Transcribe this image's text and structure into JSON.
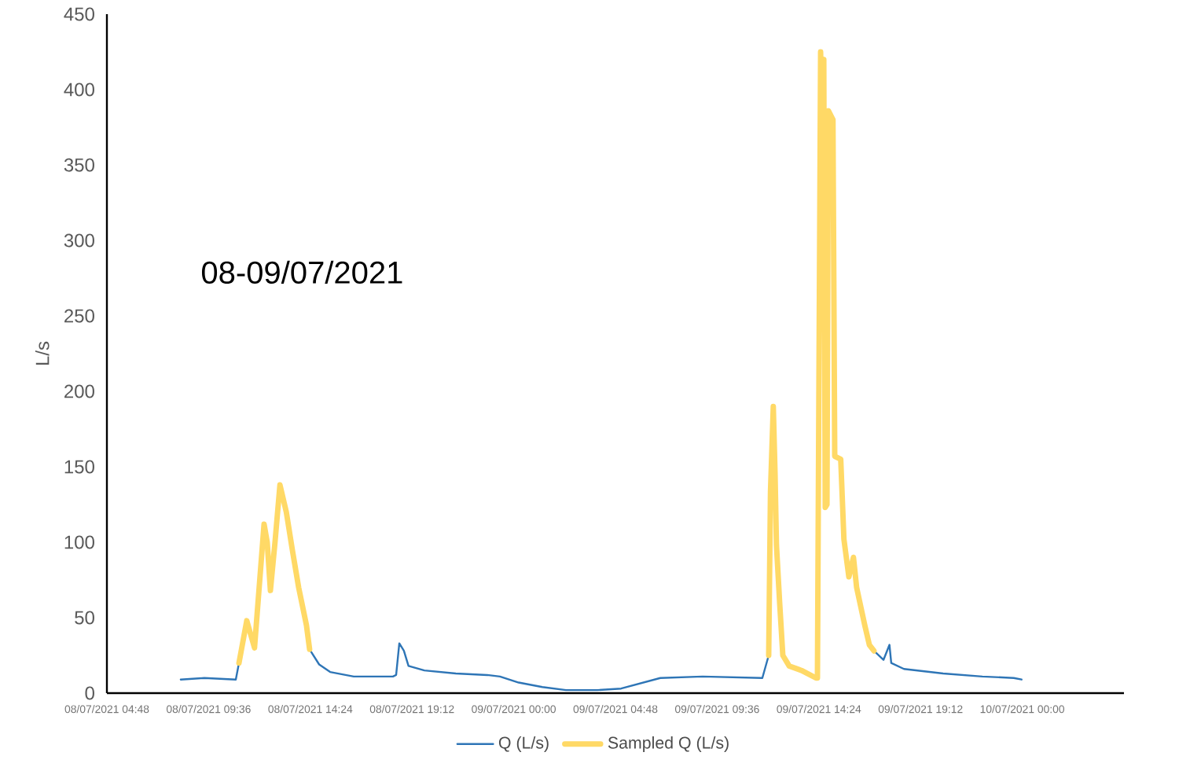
{
  "chart_data": {
    "type": "line",
    "ylabel": "L/s",
    "annotations": [
      "08-09/07/2021"
    ],
    "xlim": [
      "2021-07-08T04:48",
      "2021-07-10T04:48"
    ],
    "xticks": [
      {
        "value": "2021-07-08T04:48",
        "label": "08/07/2021 04:48"
      },
      {
        "value": "2021-07-08T09:36",
        "label": "08/07/2021 09:36"
      },
      {
        "value": "2021-07-08T14:24",
        "label": "08/07/2021 14:24"
      },
      {
        "value": "2021-07-08T19:12",
        "label": "08/07/2021 19:12"
      },
      {
        "value": "2021-07-09T00:00",
        "label": "09/07/2021 00:00"
      },
      {
        "value": "2021-07-09T04:48",
        "label": "09/07/2021 04:48"
      },
      {
        "value": "2021-07-09T09:36",
        "label": "09/07/2021 09:36"
      },
      {
        "value": "2021-07-09T14:24",
        "label": "09/07/2021 14:24"
      },
      {
        "value": "2021-07-09T19:12",
        "label": "09/07/2021 19:12"
      },
      {
        "value": "2021-07-10T00:00",
        "label": "10/07/2021 00:00"
      }
    ],
    "ylim": [
      0,
      450
    ],
    "yticks": [
      0,
      50,
      100,
      150,
      200,
      250,
      300,
      350,
      400,
      450
    ],
    "grid": false,
    "legend": "bottom",
    "marker": "none",
    "line_style": "solid",
    "series": [
      {
        "name": "Q (L/s)",
        "color": "#2e75b6",
        "x": [
          "2021-07-08T08:17",
          "2021-07-08T09:24",
          "2021-07-08T10:53",
          "2021-07-08T11:02",
          "2021-07-08T12:30",
          "2021-07-08T14:22",
          "2021-07-08T14:49",
          "2021-07-08T15:20",
          "2021-07-08T16:27",
          "2021-07-08T18:18",
          "2021-07-08T18:27",
          "2021-07-08T18:36",
          "2021-07-08T18:49",
          "2021-07-08T19:02",
          "2021-07-08T19:47",
          "2021-07-08T21:16",
          "2021-07-08T22:45",
          "2021-07-08T23:21",
          "2021-07-09T00:14",
          "2021-07-09T01:21",
          "2021-07-09T02:28",
          "2021-07-09T03:57",
          "2021-07-09T05:04",
          "2021-07-09T06:55",
          "2021-07-09T08:55",
          "2021-07-09T11:44",
          "2021-07-09T12:02",
          "2021-07-09T14:00",
          "2021-07-09T17:00",
          "2021-07-09T17:27",
          "2021-07-09T17:44",
          "2021-07-09T17:49",
          "2021-07-09T18:25",
          "2021-07-09T20:16",
          "2021-07-09T22:07",
          "2021-07-09T23:36",
          "2021-07-09T23:58"
        ],
        "values": [
          9,
          10,
          9,
          20,
          null,
          29,
          19,
          14,
          11,
          11,
          12,
          33,
          28,
          18,
          15,
          13,
          12,
          11,
          7,
          4,
          2,
          2,
          3,
          10,
          11,
          10,
          25,
          null,
          28,
          22,
          32,
          20,
          16,
          13,
          11,
          10,
          9
        ]
      },
      {
        "name": "Sampled Q (L/s)",
        "color": "#ffd966",
        "x": [
          "2021-07-08T11:02",
          "2021-07-08T11:24",
          "2021-07-08T11:46",
          "2021-07-08T12:13",
          "2021-07-08T12:22",
          "2021-07-08T12:31",
          "2021-07-08T12:44",
          "2021-07-08T12:58",
          "2021-07-08T13:16",
          "2021-07-08T13:33",
          "2021-07-08T13:51",
          "2021-07-08T14:13",
          "2021-07-08T14:22",
          "2021-07-09T01:00",
          "2021-07-09T12:02",
          "2021-07-09T12:07",
          "2021-07-09T12:15",
          "2021-07-09T12:20",
          "2021-07-09T12:24",
          "2021-07-09T12:33",
          "2021-07-09T12:42",
          "2021-07-09T13:00",
          "2021-07-09T13:35",
          "2021-07-09T14:16",
          "2021-07-09T14:20",
          "2021-07-09T14:29",
          "2021-07-09T14:33",
          "2021-07-09T14:38",
          "2021-07-09T14:42",
          "2021-07-09T14:47",
          "2021-07-09T14:51",
          "2021-07-09T15:04",
          "2021-07-09T15:09",
          "2021-07-09T15:26",
          "2021-07-09T15:35",
          "2021-07-09T15:49",
          "2021-07-09T16:02",
          "2021-07-09T16:11",
          "2021-07-09T16:34",
          "2021-07-09T16:47",
          "2021-07-09T17:00"
        ],
        "values": [
          20,
          48,
          30,
          112,
          100,
          68,
          100,
          138,
          120,
          95,
          70,
          45,
          29,
          null,
          25,
          133,
          190,
          145,
          98,
          60,
          25,
          18,
          15,
          10,
          10,
          425,
          380,
          420,
          123,
          125,
          386,
          380,
          157,
          155,
          102,
          77,
          90,
          70,
          45,
          32,
          28
        ]
      }
    ]
  }
}
